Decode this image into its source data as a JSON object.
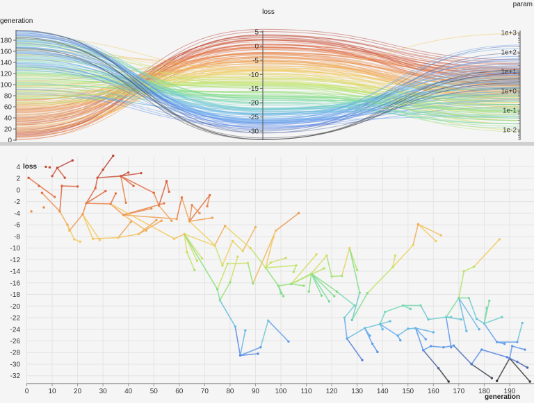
{
  "chart_data": [
    {
      "type": "parallel-coordinates",
      "axes": [
        {
          "name": "generation",
          "label": "generation",
          "range": [
            0,
            198
          ],
          "ticks": [
            0,
            20,
            40,
            60,
            80,
            100,
            120,
            140,
            160,
            180
          ],
          "scale": "linear"
        },
        {
          "name": "loss",
          "label": "loss",
          "range": [
            -33,
            5.5
          ],
          "ticks": [
            5,
            0,
            -5,
            -10,
            -15,
            -20,
            -25,
            -30
          ],
          "scale": "linear"
        },
        {
          "name": "param",
          "label": "param",
          "range": [
            0.003,
            1200
          ],
          "ticks": [
            "1e+3",
            "1e+2",
            "1e+1",
            "1e+0",
            "1e-1",
            "1e-2"
          ],
          "scale": "log"
        }
      ],
      "color_by": "loss",
      "records_source": "chart_data.1.points"
    },
    {
      "type": "scatter",
      "xlabel": "generation",
      "ylabel": "loss",
      "xlim": [
        0,
        199
      ],
      "ylim": [
        -33.4,
        5
      ],
      "xticks": [
        0,
        10,
        20,
        30,
        40,
        50,
        60,
        70,
        80,
        90,
        100,
        110,
        120,
        130,
        140,
        150,
        160,
        170,
        180,
        190
      ],
      "yticks": [
        4,
        2,
        0,
        -2,
        -4,
        -6,
        -8,
        -10,
        -12,
        -14,
        -16,
        -18,
        -20,
        -22,
        -24,
        -26,
        -28,
        -30,
        -32
      ],
      "grid": true,
      "lines_connect": "parent-child",
      "color_by": "loss",
      "color_scale": [
        "#b8453a",
        "#e0683e",
        "#f0a052",
        "#f2cf62",
        "#c2e466",
        "#86e07a",
        "#72d4c4",
        "#64aeee",
        "#5580e6",
        "#3a3a3a"
      ],
      "point_fields": [
        "generation",
        "loss",
        "parent",
        "param"
      ],
      "points": [
        [
          0.7,
          2.1,
          -1,
          3.1
        ],
        [
          11,
          -1.2,
          0,
          5.2
        ],
        [
          4.8,
          0.7,
          -1,
          1.4
        ],
        [
          6,
          -0.5,
          -1,
          8.0
        ],
        [
          13,
          -3.7,
          3,
          2.3
        ],
        [
          16,
          -6,
          4,
          0.9
        ],
        [
          16.8,
          -7,
          5,
          4.1
        ],
        [
          18.7,
          -8.5,
          5,
          0.6
        ],
        [
          21,
          -8.9,
          7,
          1.2
        ],
        [
          13.8,
          0.7,
          4,
          12
        ],
        [
          20,
          0.6,
          9,
          7.5
        ],
        [
          7.5,
          4,
          -1,
          15
        ],
        [
          9,
          3.9,
          -1,
          2.0
        ],
        [
          12,
          3.8,
          -1,
          25
        ],
        [
          10,
          2.4,
          13,
          6.3
        ],
        [
          18,
          5.1,
          13,
          30
        ],
        [
          15,
          2.1,
          13,
          9.8
        ],
        [
          1.8,
          -3.7,
          -1,
          0.4
        ],
        [
          6.7,
          -3,
          -1,
          0.7
        ],
        [
          22,
          -4.2,
          6,
          3.3
        ],
        [
          23.4,
          -2.3,
          19,
          11
        ],
        [
          27,
          0.3,
          20,
          18
        ],
        [
          27.8,
          2.1,
          21,
          4.4
        ],
        [
          30,
          3.5,
          22,
          22
        ],
        [
          34,
          5.9,
          23,
          40
        ],
        [
          31,
          -0.2,
          20,
          1.8
        ],
        [
          33,
          -2.4,
          20,
          6.1
        ],
        [
          35,
          -0.6,
          26,
          2.7
        ],
        [
          37,
          2.4,
          22,
          14
        ],
        [
          40,
          3,
          28,
          9.1
        ],
        [
          45,
          2.9,
          28,
          3.6
        ],
        [
          42,
          0.7,
          28,
          1.1
        ],
        [
          39,
          -2.2,
          28,
          5.5
        ],
        [
          38,
          -4.3,
          26,
          0.8
        ],
        [
          50,
          -0.5,
          28,
          13
        ],
        [
          52,
          -2.7,
          34,
          2.2
        ],
        [
          55,
          1.5,
          35,
          7.7
        ],
        [
          56,
          -0.3,
          36,
          3.9
        ],
        [
          57,
          -5.3,
          35,
          0.5
        ],
        [
          59,
          -5,
          33,
          1.6
        ],
        [
          61,
          -1.3,
          39,
          4.8
        ],
        [
          64,
          -5.4,
          40,
          0.9
        ],
        [
          65,
          -2.6,
          41,
          2.9
        ],
        [
          72,
          -0.9,
          41,
          6.6
        ],
        [
          71,
          -2.8,
          43,
          1.3
        ],
        [
          73,
          -4.8,
          41,
          0.35
        ],
        [
          68,
          -4,
          42,
          2.5
        ],
        [
          54,
          -2.3,
          33,
          8.4
        ],
        [
          49,
          -3.2,
          33,
          1.9
        ],
        [
          26,
          -8.4,
          19,
          0.25
        ],
        [
          28.7,
          -8.6,
          19,
          0.6
        ],
        [
          36,
          -8.2,
          49,
          0.15
        ],
        [
          44,
          -7.6,
          51,
          0.45
        ],
        [
          51,
          -5.2,
          52,
          1.0
        ],
        [
          53,
          -5.3,
          52,
          0.3
        ],
        [
          58,
          -8.4,
          26,
          0.2
        ],
        [
          62,
          -7.6,
          55,
          0.5
        ],
        [
          74,
          -9.6,
          56,
          0.12
        ],
        [
          41,
          -5.5,
          51,
          0.7
        ],
        [
          47,
          -7,
          33,
          0.4
        ],
        [
          63,
          -10.7,
          56,
          0.09
        ],
        [
          66,
          -13.8,
          60,
          0.05
        ],
        [
          69,
          -11.8,
          56,
          0.3
        ],
        [
          67,
          -12.2,
          56,
          0.08
        ],
        [
          75,
          -17.1,
          56,
          0.04
        ],
        [
          76,
          -19,
          64,
          0.2
        ],
        [
          82,
          -23.5,
          65,
          0.6
        ],
        [
          84,
          -28.5,
          66,
          0.15
        ],
        [
          86,
          -24.2,
          67,
          1.5
        ],
        [
          91,
          -28.2,
          67,
          0.3
        ],
        [
          92,
          -27.1,
          67,
          2.4
        ],
        [
          95,
          -22.5,
          70,
          0.7
        ],
        [
          103,
          -26.1,
          71,
          0.05
        ],
        [
          79,
          -12.7,
          64,
          0.02
        ],
        [
          87,
          -12.6,
          73,
          0.06
        ],
        [
          89,
          -16.1,
          74,
          0.03
        ],
        [
          98,
          -7,
          75,
          0.9
        ],
        [
          107,
          -4,
          76,
          2.1
        ],
        [
          80,
          -15.9,
          65,
          0.11
        ],
        [
          83,
          -11.5,
          78,
          0.4
        ],
        [
          74,
          -9.5,
          41,
          0.02
        ],
        [
          77,
          -13,
          80,
          0.07
        ],
        [
          78,
          -6.2,
          80,
          0.5
        ],
        [
          81,
          -8.8,
          81,
          0.03
        ],
        [
          85,
          -10.5,
          83,
          0.18
        ],
        [
          90,
          -6.4,
          84,
          1.7
        ],
        [
          88,
          -10,
          82,
          0.01
        ],
        [
          94,
          -13.4,
          86,
          0.04
        ],
        [
          97,
          -8.2,
          87,
          0.8
        ],
        [
          96,
          -12.5,
          87,
          0.09
        ],
        [
          102,
          -11.7,
          89,
          0.25
        ],
        [
          99,
          -16.5,
          87,
          0.015
        ],
        [
          100,
          -17.8,
          91,
          0.1
        ],
        [
          101,
          -18.3,
          91,
          0.4
        ],
        [
          106,
          -13,
          87,
          0.06
        ],
        [
          105,
          -14.1,
          94,
          0.13
        ],
        [
          104,
          -16.2,
          91,
          0.03
        ],
        [
          114,
          -11.1,
          96,
          0.2
        ],
        [
          117,
          -13.5,
          96,
          0.5
        ],
        [
          112,
          -14.4,
          96,
          0.08
        ],
        [
          118,
          -11.3,
          99,
          1.1
        ],
        [
          120,
          -14.9,
          100,
          0.04
        ],
        [
          124,
          -14.8,
          101,
          0.3
        ],
        [
          127,
          -10,
          102,
          0.7
        ],
        [
          130,
          -13.8,
          103,
          0.16
        ],
        [
          131,
          -17.7,
          103,
          0.02
        ],
        [
          128,
          -22.4,
          105,
          4.5
        ],
        [
          111,
          -17.5,
          99,
          0.05
        ],
        [
          109,
          -16.5,
          96,
          0.2
        ],
        [
          116,
          -18.2,
          99,
          0.6
        ],
        [
          121,
          -18.3,
          99,
          0.012
        ],
        [
          122,
          -17.5,
          99,
          0.09
        ],
        [
          129,
          -19.9,
          111,
          1.3
        ],
        [
          119,
          -19.2,
          99,
          0.3
        ],
        [
          125,
          -22,
          112,
          3.2
        ],
        [
          126,
          -25.6,
          114,
          12
        ],
        [
          132,
          -29.3,
          115,
          45
        ],
        [
          133,
          -23.8,
          115,
          2.2
        ],
        [
          134,
          -17.8,
          106,
          0.5
        ],
        [
          144,
          -13.3,
          118,
          0.08
        ],
        [
          145,
          -11.3,
          119,
          0.25
        ],
        [
          152,
          -9.5,
          119,
          0.03
        ],
        [
          154,
          -5.9,
          121,
          0.6
        ],
        [
          163,
          -7.8,
          122,
          1.9
        ],
        [
          161,
          -8.8,
          122,
          0.15
        ],
        [
          136,
          -26.5,
          117,
          20
        ],
        [
          138,
          -27.9,
          125,
          8.8
        ],
        [
          135,
          -25.1,
          117,
          0.9
        ],
        [
          139,
          -23.1,
          117,
          6.0
        ],
        [
          140,
          -24,
          128,
          0.3
        ],
        [
          141,
          -21,
          128,
          0.04
        ],
        [
          143,
          -22.6,
          128,
          1.4
        ],
        [
          146,
          -25.1,
          128,
          35
        ],
        [
          147,
          -25.9,
          132,
          150
        ],
        [
          148,
          -19.9,
          130,
          0.1
        ],
        [
          150,
          -23.9,
          132,
          4.0
        ],
        [
          151,
          -20.5,
          134,
          0.7
        ],
        [
          153,
          -23.8,
          135,
          9.5
        ],
        [
          155,
          -19.9,
          134,
          0.02
        ],
        [
          158,
          -22.3,
          138,
          2.8
        ],
        [
          156,
          -27.6,
          137,
          60
        ],
        [
          157,
          -25.7,
          137,
          0.2
        ],
        [
          159,
          -26.9,
          140,
          7.1
        ],
        [
          160,
          -24.5,
          137,
          17
        ],
        [
          162,
          -30.7,
          140,
          90
        ],
        [
          164,
          -27.1,
          142,
          3.0
        ],
        [
          165,
          -21.9,
          139,
          0.06
        ],
        [
          167,
          -21.9,
          146,
          0.5
        ],
        [
          167,
          -27.1,
          146,
          1.2
        ],
        [
          168,
          -26.8,
          145,
          25
        ],
        [
          170,
          -18.6,
          146,
          0.03
        ],
        [
          172,
          -14,
          150,
          0.008
        ],
        [
          176,
          -13.2,
          151,
          0.3
        ],
        [
          186,
          -8.5,
          152,
          900
        ],
        [
          174,
          -18.6,
          150,
          0.12
        ],
        [
          171,
          -22.3,
          146,
          5.0
        ],
        [
          173,
          -24.3,
          150,
          0.9
        ],
        [
          177,
          -22.2,
          154,
          0.4
        ],
        [
          178,
          -24,
          150,
          11
        ],
        [
          175,
          -30,
          149,
          200
        ],
        [
          179,
          -27.5,
          159,
          2.0
        ],
        [
          180,
          -23,
          157,
          0.08
        ],
        [
          181,
          -20.3,
          161,
          0.02
        ],
        [
          182,
          -19.1,
          161,
          0.2
        ],
        [
          185,
          -26.2,
          161,
          230
        ],
        [
          187,
          -21.9,
          161,
          1.6
        ],
        [
          188,
          -26.5,
          164,
          40
        ],
        [
          189,
          -28.8,
          160,
          6.5
        ],
        [
          190,
          -29,
          167,
          3.4
        ],
        [
          191,
          -26.9,
          168,
          15
        ],
        [
          193,
          -26.2,
          164,
          0.35
        ],
        [
          195,
          -22.9,
          170,
          0.05
        ],
        [
          193,
          -29.6,
          168,
          9.0
        ],
        [
          196,
          -27.5,
          169,
          0.7
        ],
        [
          197,
          -30.6,
          172,
          1.4
        ],
        [
          185,
          -32.9,
          168,
          4.2
        ],
        [
          183,
          -32.4,
          159,
          2.6
        ],
        [
          198,
          -33,
          168,
          7.8
        ],
        [
          166,
          -33,
          144,
          12
        ]
      ]
    }
  ]
}
